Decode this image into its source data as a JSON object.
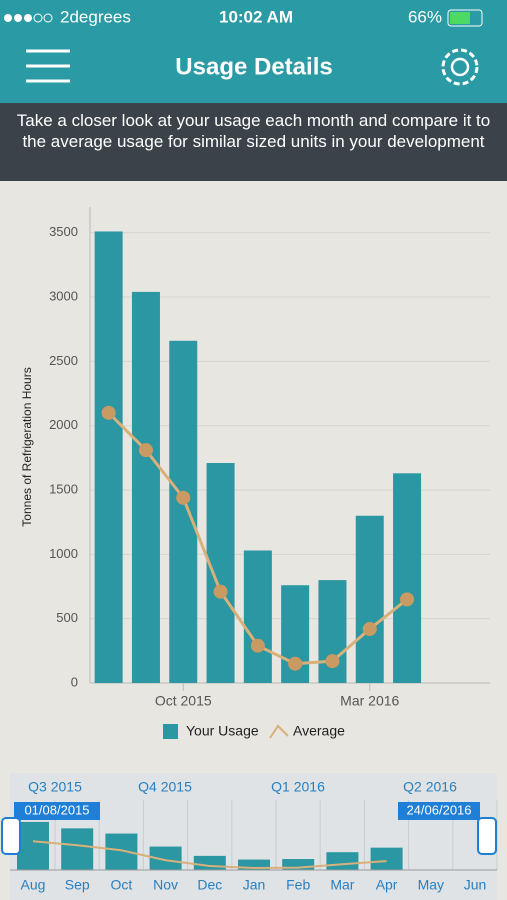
{
  "status": {
    "carrier": "2degrees",
    "time": "10:02 AM",
    "battery": "66%"
  },
  "header": {
    "title": "Usage Details"
  },
  "banner": {
    "text": "Take a closer look at your usage each month and compare it to the average usage for similar sized units in your development"
  },
  "chart_data": {
    "type": "bar",
    "y_label": "Tonnes of Refrigeration Hours",
    "categories": [
      null,
      null,
      "Oct 2015",
      null,
      null,
      null,
      null,
      "Mar 2016",
      null
    ],
    "series": [
      {
        "name": "Your Usage",
        "type": "bar",
        "color": "#2a97a2",
        "values": [
          3510,
          3040,
          2660,
          1710,
          1030,
          760,
          800,
          1300,
          1630
        ]
      },
      {
        "name": "Average",
        "type": "line",
        "color": "#d9b07a",
        "values": [
          2100,
          1810,
          1440,
          710,
          290,
          150,
          170,
          420,
          650
        ]
      }
    ],
    "ylim": [
      0,
      3700
    ],
    "yticks": [
      0,
      500,
      1000,
      1500,
      2000,
      2500,
      3000,
      3500
    ],
    "grid": true,
    "legend": "bottom"
  },
  "navigator": {
    "quarters": [
      "Q3 2015",
      "Q4 2015",
      "Q1 2016",
      "Q2 2016"
    ],
    "months": [
      "Aug",
      "Sep",
      "Oct",
      "Nov",
      "Dec",
      "Jan",
      "Feb",
      "Mar",
      "Apr",
      "May",
      "Jun"
    ],
    "range_start": "01/08/2015",
    "range_end": "24/06/2016"
  }
}
